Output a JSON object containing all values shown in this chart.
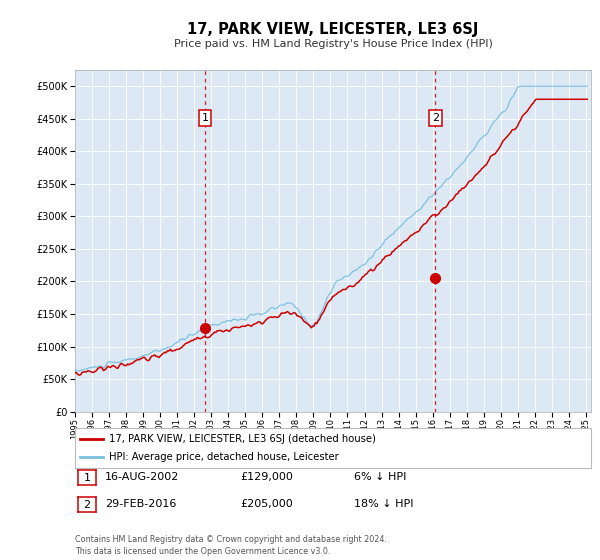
{
  "title": "17, PARK VIEW, LEICESTER, LE3 6SJ",
  "subtitle": "Price paid vs. HM Land Registry's House Price Index (HPI)",
  "background_color": "#ffffff",
  "plot_bg_color": "#dce9f5",
  "legend_label_red": "17, PARK VIEW, LEICESTER, LE3 6SJ (detached house)",
  "legend_label_blue": "HPI: Average price, detached house, Leicester",
  "transaction1_date": "16-AUG-2002",
  "transaction1_price": 129000,
  "transaction1_pct": "6% ↓ HPI",
  "transaction2_date": "29-FEB-2016",
  "transaction2_price": 205000,
  "transaction2_pct": "18% ↓ HPI",
  "footer": "Contains HM Land Registry data © Crown copyright and database right 2024.\nThis data is licensed under the Open Government Licence v3.0.",
  "ylim": [
    0,
    525000
  ],
  "yticks": [
    0,
    50000,
    100000,
    150000,
    200000,
    250000,
    300000,
    350000,
    400000,
    450000,
    500000
  ],
  "red_color": "#cc0000",
  "blue_color": "#7bbfdf",
  "vline_color": "#cc0000",
  "marker1_year": 2002.625,
  "marker2_year": 2016.164,
  "xlim_left": 1995.0,
  "xlim_right": 2025.3
}
